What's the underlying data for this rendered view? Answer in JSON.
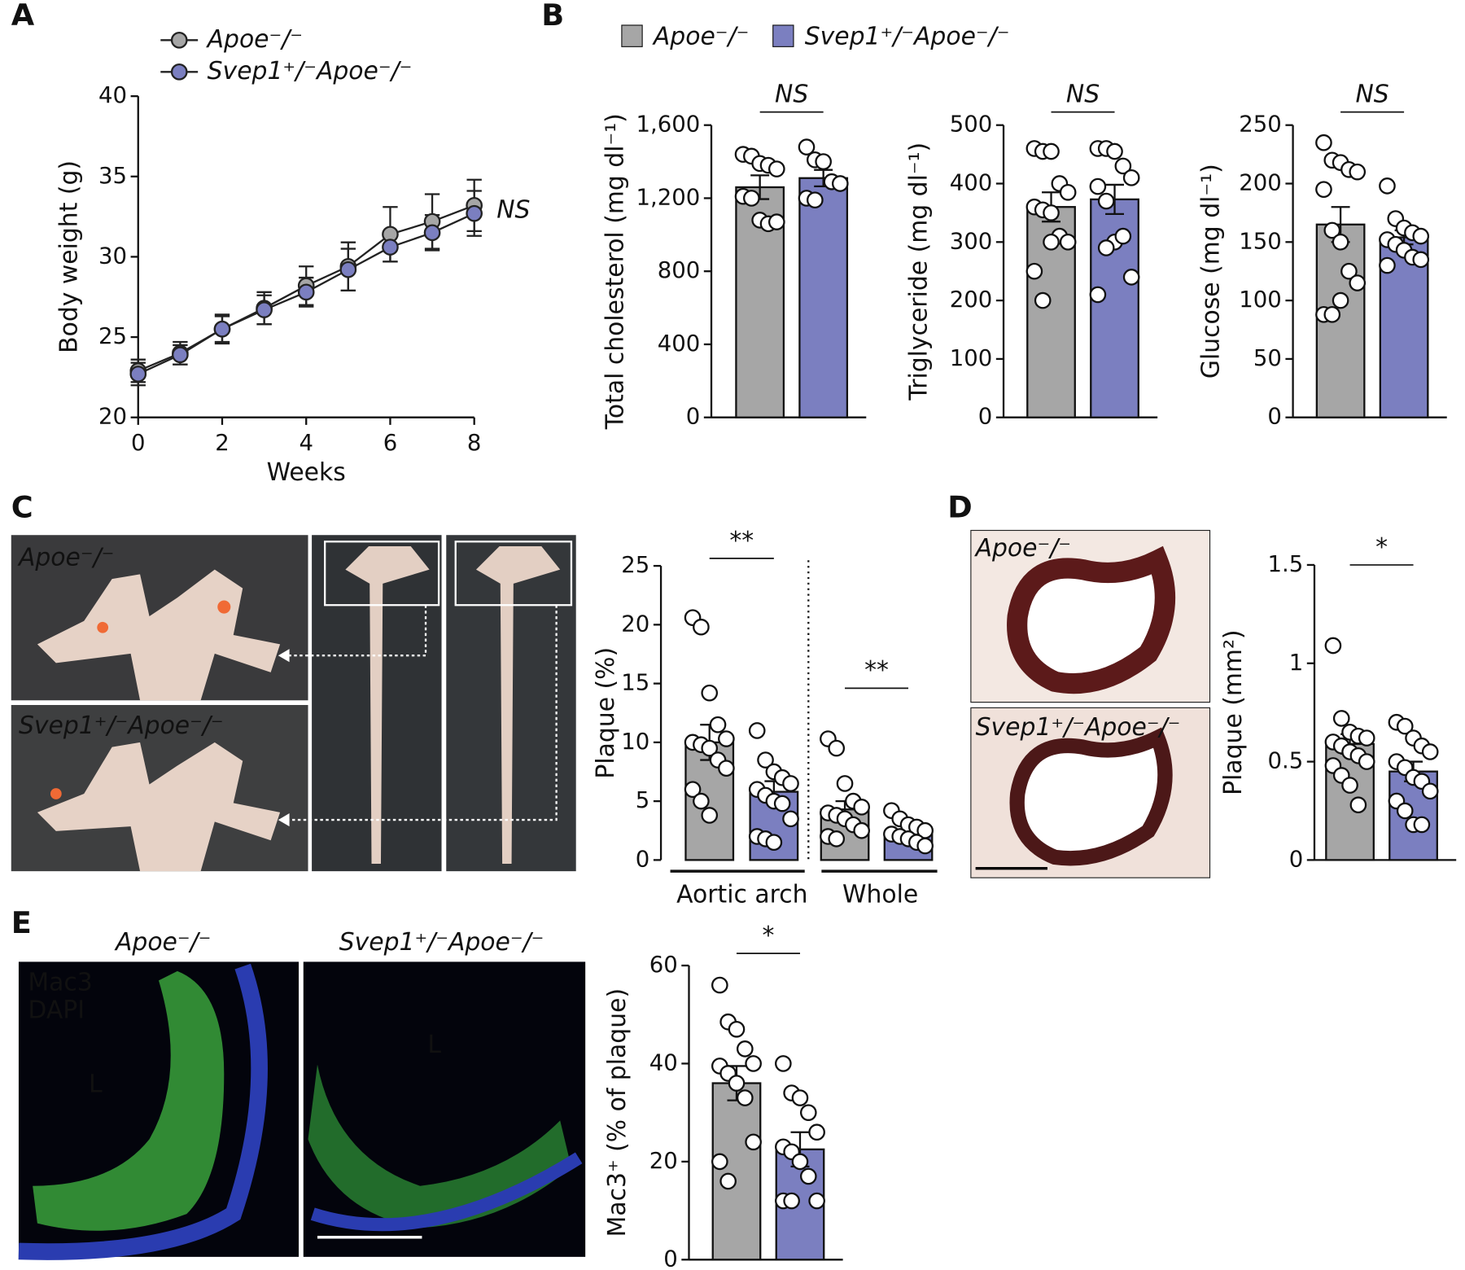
{
  "panel_labels": [
    "A",
    "B",
    "C",
    "D",
    "E"
  ],
  "photos": {
    "C": [
      "Apoe⁻/⁻",
      "Svep1⁺/⁻Apoe⁻/⁻"
    ],
    "D": [
      "Apoe⁻/⁻",
      "Svep1⁺/⁻Apoe⁻/⁻"
    ],
    "E": {
      "titles": [
        "Apoe⁻/⁻",
        "Svep1⁺/⁻Apoe⁻/⁻"
      ],
      "stains": [
        "Mac3",
        "DAPI"
      ],
      "lumen": [
        "L",
        "L"
      ]
    }
  },
  "chart_data": [
    {
      "type": "line",
      "xlabel": "Weeks",
      "ylabel": "Body weight (g)",
      "annotation": "NS",
      "x": [
        0,
        1,
        2,
        3,
        4,
        5,
        6,
        7,
        8
      ],
      "xlim": [
        0,
        8
      ],
      "xticks": [
        0,
        2,
        4,
        6,
        8
      ],
      "ylim": [
        20,
        40
      ],
      "yticks": [
        20,
        25,
        30,
        35,
        40
      ],
      "legend": "top-left",
      "series": [
        {
          "name": "Apoe⁻/⁻",
          "color": "#a6a6a6",
          "values": [
            22.9,
            24.0,
            25.5,
            26.8,
            28.2,
            29.4,
            31.4,
            32.2,
            33.2
          ],
          "errors": [
            0.7,
            0.7,
            0.9,
            1.0,
            1.2,
            1.5,
            1.7,
            1.7,
            1.6
          ]
        },
        {
          "name": "Svep1⁺/⁻Apoe⁻/⁻",
          "color": "#7b7fc0",
          "values": [
            22.7,
            23.9,
            25.5,
            26.7,
            27.8,
            29.2,
            30.6,
            31.5,
            32.7
          ],
          "errors": [
            0.7,
            0.6,
            0.8,
            0.9,
            0.9,
            1.3,
            0.9,
            1.1,
            1.4
          ]
        }
      ]
    },
    {
      "type": "bar",
      "ylabel": "Total cholesterol (mg dl⁻¹)",
      "ylim": [
        0,
        1600
      ],
      "yticks": [
        0,
        400,
        800,
        {
          "value": 1200,
          "label": "1,200"
        },
        {
          "value": 1600,
          "label": "1,600"
        }
      ],
      "legend": [
        {
          "name": "Apoe⁻/⁻",
          "color": "#a6a6a6"
        },
        {
          "name": "Svep1⁺/⁻Apoe⁻/⁻",
          "color": "#7b7fc0"
        }
      ],
      "significance": [
        "NS"
      ],
      "bars": [
        {
          "color": "#a6a6a6",
          "value": 1260,
          "error": 65,
          "points": [
            1440,
            1430,
            1390,
            1380,
            1360,
            1210,
            1200,
            1080,
            1060,
            1070
          ]
        },
        {
          "color": "#7b7fc0",
          "value": 1310,
          "error": 45,
          "points": [
            1480,
            1410,
            1400,
            1290,
            1280,
            1200,
            1190
          ]
        }
      ]
    },
    {
      "type": "bar",
      "ylabel": "Triglyceride (mg dl⁻¹)",
      "ylim": [
        0,
        500
      ],
      "yticks": [
        0,
        100,
        200,
        300,
        400,
        500
      ],
      "significance": [
        "NS"
      ],
      "bars": [
        {
          "color": "#a6a6a6",
          "value": 360,
          "error": 25,
          "points": [
            460,
            455,
            455,
            400,
            385,
            360,
            355,
            350,
            310,
            300,
            250,
            200,
            300
          ]
        },
        {
          "color": "#7b7fc0",
          "value": 373,
          "error": 25,
          "points": [
            460,
            460,
            455,
            430,
            410,
            395,
            370,
            300,
            310,
            240,
            210,
            290
          ]
        }
      ]
    },
    {
      "type": "bar",
      "ylabel": "Glucose (mg dl⁻¹)",
      "ylim": [
        0,
        250
      ],
      "yticks": [
        0,
        50,
        100,
        150,
        200,
        250
      ],
      "significance": [
        "NS"
      ],
      "bars": [
        {
          "color": "#a6a6a6",
          "value": 165,
          "error": 15,
          "points": [
            235,
            220,
            218,
            212,
            210,
            195,
            160,
            150,
            125,
            115,
            88,
            88,
            100
          ]
        },
        {
          "color": "#7b7fc0",
          "value": 154,
          "error": 6,
          "points": [
            198,
            170,
            162,
            158,
            155,
            152,
            148,
            143,
            137,
            135,
            130
          ]
        }
      ]
    },
    {
      "type": "bar",
      "ylabel": "Plaque (%)",
      "ylim": [
        0,
        25
      ],
      "yticks": [
        0,
        5,
        10,
        15,
        20,
        25
      ],
      "groups": [
        "Aortic arch",
        "Whole"
      ],
      "significance": [
        "**",
        "**"
      ],
      "bars": [
        {
          "color": "#a6a6a6",
          "value": 10.0,
          "error": 1.5,
          "points": [
            20.6,
            19.8,
            14.2,
            11.5,
            10.3,
            10.0,
            9.8,
            9.5,
            8.5,
            7.8,
            6.0,
            5.0,
            3.8
          ]
        },
        {
          "color": "#7b7fc0",
          "value": 5.8,
          "error": 0.9,
          "points": [
            11.0,
            8.5,
            7.5,
            7.0,
            6.5,
            6.0,
            5.5,
            5.0,
            4.8,
            3.5,
            2.0,
            1.8,
            1.5
          ]
        },
        {
          "color": "#a6a6a6",
          "value": 4.3,
          "error": 0.7,
          "points": [
            10.3,
            9.5,
            6.5,
            5.0,
            4.5,
            4.0,
            3.8,
            3.5,
            3.0,
            2.5,
            2.0,
            1.8
          ]
        },
        {
          "color": "#7b7fc0",
          "value": 2.2,
          "error": 0.3,
          "points": [
            4.2,
            3.5,
            3.0,
            2.8,
            2.5,
            2.2,
            2.0,
            1.8,
            1.5,
            1.2
          ]
        }
      ]
    },
    {
      "type": "bar",
      "ylabel": "Plaque (mm²)",
      "ylim": [
        0,
        1.5
      ],
      "yticks": [
        0,
        0.5,
        1,
        1.5
      ],
      "significance": [
        "*"
      ],
      "bars": [
        {
          "color": "#a6a6a6",
          "value": 0.59,
          "error": 0.05,
          "points": [
            1.09,
            0.72,
            0.65,
            0.63,
            0.62,
            0.6,
            0.58,
            0.55,
            0.53,
            0.5,
            0.48,
            0.43,
            0.38,
            0.28
          ]
        },
        {
          "color": "#7b7fc0",
          "value": 0.45,
          "error": 0.05,
          "points": [
            0.7,
            0.68,
            0.62,
            0.58,
            0.55,
            0.5,
            0.47,
            0.42,
            0.4,
            0.35,
            0.3,
            0.25,
            0.18,
            0.18
          ]
        }
      ]
    },
    {
      "type": "bar",
      "ylabel": "Mac3⁺ (% of plaque)",
      "ylim": [
        0,
        60
      ],
      "yticks": [
        0,
        20,
        40,
        60
      ],
      "significance": [
        "*"
      ],
      "bars": [
        {
          "color": "#a6a6a6",
          "value": 36,
          "error": 3.5,
          "points": [
            56,
            48.5,
            47,
            43,
            40,
            39.5,
            38,
            36,
            33,
            24,
            20,
            16
          ]
        },
        {
          "color": "#7b7fc0",
          "value": 22.5,
          "error": 3.5,
          "points": [
            40,
            34,
            33,
            30,
            26,
            23,
            22,
            20,
            17,
            12,
            12,
            12
          ]
        }
      ]
    }
  ]
}
